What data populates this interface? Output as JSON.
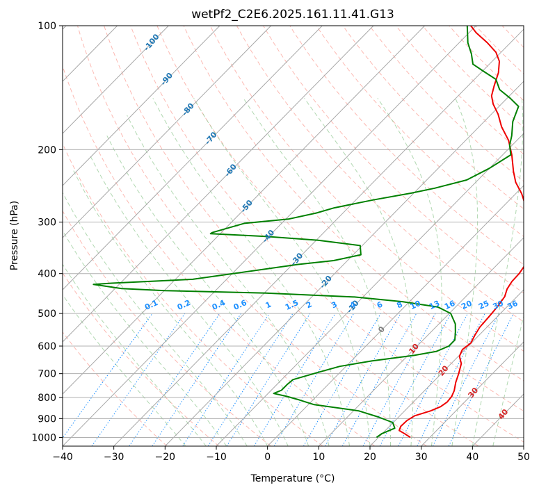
{
  "chart_data": {
    "type": "line",
    "title": "wetPf2_C2E6.2025.161.11.41.G13",
    "xlabel": "Temperature (°C)",
    "ylabel": "Pressure (hPa)",
    "xlim": [
      -40,
      50
    ],
    "ylim": [
      1050,
      100
    ],
    "y_scale": "log",
    "skew_per_decade_C": 79,
    "x_ticks": [
      -40,
      -30,
      -20,
      -10,
      0,
      10,
      20,
      30,
      40,
      50
    ],
    "y_ticks": [
      1000,
      900,
      800,
      700,
      600,
      500,
      400,
      300,
      200,
      100
    ],
    "grid": true,
    "series": [
      {
        "color": "#ee0000",
        "points": [
          [
            26.2,
            1000
          ],
          [
            24.4,
            980
          ],
          [
            22.7,
            962
          ],
          [
            22.2,
            940
          ],
          [
            22.3,
            910
          ],
          [
            22.9,
            886
          ],
          [
            25.1,
            862
          ],
          [
            26.2,
            842
          ],
          [
            26.6,
            820
          ],
          [
            26.4,
            795
          ],
          [
            25.8,
            770
          ],
          [
            24.5,
            735
          ],
          [
            23.4,
            700
          ],
          [
            22.0,
            662
          ],
          [
            20.2,
            635
          ],
          [
            19.5,
            612
          ],
          [
            19.9,
            590
          ],
          [
            19.2,
            565
          ],
          [
            18.6,
            540
          ],
          [
            18.4,
            510
          ],
          [
            18.1,
            480
          ],
          [
            17.6,
            455
          ],
          [
            16.6,
            436
          ],
          [
            16.1,
            418
          ],
          [
            16.0,
            400
          ],
          [
            15.6,
            385
          ],
          [
            15.0,
            370
          ],
          [
            13.5,
            355
          ],
          [
            11.9,
            342
          ],
          [
            10.3,
            320
          ],
          [
            7.6,
            298
          ],
          [
            4.6,
            276
          ],
          [
            1.2,
            256
          ],
          [
            -2.2,
            240
          ],
          [
            -4.7,
            226
          ],
          [
            -8.2,
            206
          ],
          [
            -11.6,
            190
          ],
          [
            -15.6,
            176
          ],
          [
            -18.7,
            164
          ],
          [
            -21.6,
            155
          ],
          [
            -23.5,
            148
          ],
          [
            -24.9,
            140
          ],
          [
            -26.6,
            130
          ],
          [
            -28.6,
            122
          ],
          [
            -31.0,
            116
          ],
          [
            -34.5,
            110
          ],
          [
            -38.6,
            104
          ],
          [
            -41.0,
            100
          ]
        ]
      },
      {
        "color": "#008000",
        "points": [
          [
            19.6,
            1000
          ],
          [
            19.9,
            980
          ],
          [
            21.4,
            950
          ],
          [
            19.9,
            920
          ],
          [
            16.0,
            892
          ],
          [
            11.0,
            862
          ],
          [
            1.0,
            832
          ],
          [
            -3.2,
            808
          ],
          [
            -5.8,
            795
          ],
          [
            -8.9,
            782
          ],
          [
            -8.0,
            768
          ],
          [
            -8.0,
            744
          ],
          [
            -7.8,
            724
          ],
          [
            -4.4,
            696
          ],
          [
            -1.2,
            672
          ],
          [
            4.0,
            652
          ],
          [
            11.2,
            632
          ],
          [
            14.8,
            618
          ],
          [
            16.2,
            600
          ],
          [
            16.2,
            580
          ],
          [
            14.8,
            555
          ],
          [
            13.2,
            530
          ],
          [
            10.3,
            500
          ],
          [
            6.5,
            482
          ],
          [
            -1.4,
            468
          ],
          [
            -11.6,
            456
          ],
          [
            -29.7,
            446
          ],
          [
            -49.9,
            440
          ],
          [
            -58.7,
            435
          ],
          [
            -65.0,
            425
          ],
          [
            -61.7,
            422
          ],
          [
            -46.6,
            413
          ],
          [
            -28.9,
            380
          ],
          [
            -22.7,
            372
          ],
          [
            -18.5,
            360
          ],
          [
            -20.4,
            342
          ],
          [
            -29.6,
            332
          ],
          [
            -40.6,
            325
          ],
          [
            -51.9,
            320
          ],
          [
            -51.8,
            318
          ],
          [
            -47.3,
            302
          ],
          [
            -39.5,
            295
          ],
          [
            -35.2,
            285
          ],
          [
            -32.7,
            277
          ],
          [
            -26.7,
            265
          ],
          [
            -20.5,
            255
          ],
          [
            -16.8,
            248
          ],
          [
            -12.2,
            237
          ],
          [
            -10.0,
            222
          ],
          [
            -8.4,
            206
          ],
          [
            -10.5,
            195
          ],
          [
            -11.9,
            185
          ],
          [
            -14.4,
            171
          ],
          [
            -16.2,
            157
          ],
          [
            -19.4,
            150
          ],
          [
            -23.1,
            143
          ],
          [
            -25.8,
            135
          ],
          [
            -29.8,
            129
          ],
          [
            -33.2,
            124
          ],
          [
            -35.5,
            117
          ],
          [
            -38.3,
            110
          ],
          [
            -40.3,
            104
          ],
          [
            -41.7,
            100
          ]
        ]
      }
    ],
    "isotherm_labels": [
      "-100",
      "-90",
      "-80",
      "-70",
      "-60",
      "-50",
      "-40",
      "-30",
      "-20",
      "-10",
      "0",
      "10",
      "20",
      "30",
      "40"
    ],
    "mixing_ratio_labels": [
      "0.1",
      "0.2",
      "0.4",
      "0.6",
      "1",
      "1.5",
      "2",
      "3",
      "4",
      "6",
      "8",
      "10",
      "13",
      "16",
      "20",
      "25",
      "30",
      "36"
    ],
    "colors": {
      "temperature": "#ee0000",
      "dewpoint": "#008000",
      "isotherm_cold": "#1f77b4",
      "isotherm_zero": "#808080",
      "isotherm_warm": "#d62728",
      "mixing_ratio": "#1e90ff",
      "dry_adiabat": "#fa8072",
      "moist_adiabat": "#90c890",
      "grid": "#b0b0b0"
    }
  }
}
